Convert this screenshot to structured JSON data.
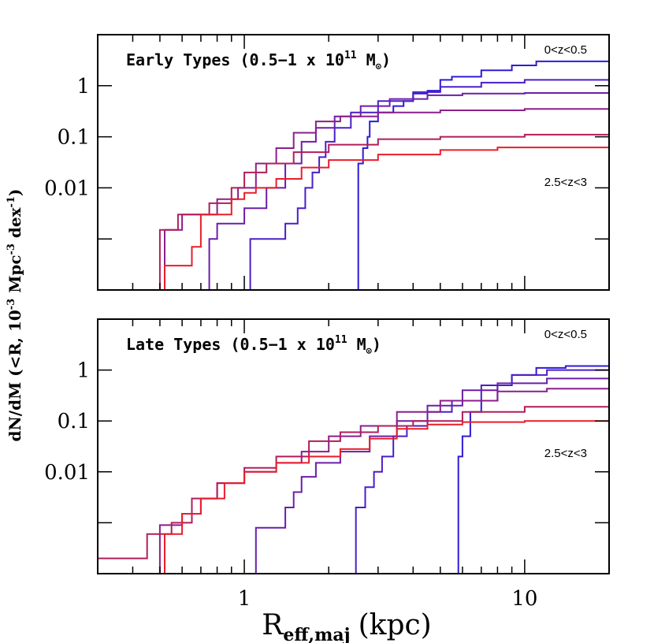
{
  "chart_data": {
    "type": "line",
    "xlabel": {
      "main": "R",
      "sub": "eff,maj",
      "unit": "(kpc)"
    },
    "ylabel": {
      "text": "dN/dM (<R, 10",
      "exp1": "-3",
      "mid": " Mpc",
      "exp2": "-3",
      "mid2": " dex",
      "exp3": "-1",
      "end": ")"
    },
    "x_scale": "log",
    "y_scale": "log",
    "xlim": [
      0.3,
      20
    ],
    "ylim": [
      0.0001,
      10
    ],
    "x_ticks": [
      {
        "value": 1,
        "label": "1"
      },
      {
        "value": 10,
        "label": "10"
      }
    ],
    "y_ticks": [
      {
        "value": 1,
        "label": "1"
      },
      {
        "value": 0.1,
        "label": "0.1"
      },
      {
        "value": 0.01,
        "label": "0.01"
      }
    ],
    "panels": [
      {
        "title": {
          "prefix": "Early Types  (0.5−1 x 10",
          "exp": "11",
          "suffix": " M",
          "sub": "⊙",
          "close": ")"
        },
        "label_top": "0<z<0.5",
        "label_bottom": "2.5<z<3",
        "series": [
          {
            "color": "#2f1bd6",
            "points": [
              [
                2.55,
                0.0001
              ],
              [
                2.55,
                0.03
              ],
              [
                2.65,
                0.06
              ],
              [
                2.75,
                0.1
              ],
              [
                2.8,
                0.2
              ],
              [
                3.0,
                0.3
              ],
              [
                3.3,
                0.3
              ],
              [
                3.4,
                0.4
              ],
              [
                3.7,
                0.5
              ],
              [
                4.0,
                0.7
              ],
              [
                4.5,
                0.8
              ],
              [
                5.0,
                1.3
              ],
              [
                5.5,
                1.5
              ],
              [
                7.0,
                2.0
              ],
              [
                9.0,
                2.5
              ],
              [
                11.0,
                3.0
              ],
              [
                20.0,
                3.0
              ]
            ]
          },
          {
            "color": "#4b1ec8",
            "points": [
              [
                1.05,
                0.0001
              ],
              [
                1.05,
                0.001
              ],
              [
                1.4,
                0.002
              ],
              [
                1.55,
                0.004
              ],
              [
                1.65,
                0.01
              ],
              [
                1.75,
                0.02
              ],
              [
                1.85,
                0.04
              ],
              [
                1.95,
                0.08
              ],
              [
                2.1,
                0.15
              ],
              [
                2.4,
                0.3
              ],
              [
                3.0,
                0.5
              ],
              [
                4.0,
                0.75
              ],
              [
                5.0,
                0.95
              ],
              [
                7.0,
                1.15
              ],
              [
                10.0,
                1.3
              ],
              [
                20.0,
                1.4
              ]
            ]
          },
          {
            "color": "#6b1ea8",
            "points": [
              [
                0.73,
                0.0001
              ],
              [
                0.75,
                0.001
              ],
              [
                0.8,
                0.002
              ],
              [
                1.0,
                0.004
              ],
              [
                1.2,
                0.01
              ],
              [
                1.4,
                0.03
              ],
              [
                1.6,
                0.08
              ],
              [
                1.8,
                0.15
              ],
              [
                2.1,
                0.25
              ],
              [
                2.6,
                0.4
              ],
              [
                3.3,
                0.55
              ],
              [
                4.5,
                0.65
              ],
              [
                6.0,
                0.7
              ],
              [
                10.0,
                0.72
              ],
              [
                20.0,
                0.75
              ]
            ]
          },
          {
            "color": "#8b1f8a",
            "points": [
              [
                0.5,
                0.0001
              ],
              [
                0.52,
                0.0015
              ],
              [
                0.6,
                0.003
              ],
              [
                0.8,
                0.006
              ],
              [
                0.95,
                0.01
              ],
              [
                1.1,
                0.03
              ],
              [
                1.3,
                0.06
              ],
              [
                1.5,
                0.12
              ],
              [
                1.8,
                0.2
              ],
              [
                2.2,
                0.25
              ],
              [
                3.0,
                0.3
              ],
              [
                5.0,
                0.33
              ],
              [
                10.0,
                0.35
              ],
              [
                20.0,
                0.36
              ]
            ]
          },
          {
            "color": "#b01e5a",
            "points": [
              [
                0.48,
                0.0001
              ],
              [
                0.5,
                0.0015
              ],
              [
                0.58,
                0.003
              ],
              [
                0.75,
                0.005
              ],
              [
                0.9,
                0.01
              ],
              [
                1.0,
                0.02
              ],
              [
                1.2,
                0.03
              ],
              [
                1.5,
                0.05
              ],
              [
                2.0,
                0.07
              ],
              [
                3.0,
                0.09
              ],
              [
                5.0,
                0.1
              ],
              [
                10.0,
                0.11
              ],
              [
                20.0,
                0.115
              ]
            ]
          },
          {
            "color": "#e81e2a",
            "points": [
              [
                0.5,
                0.0001
              ],
              [
                0.52,
                0.0003
              ],
              [
                0.6,
                0.0003
              ],
              [
                0.65,
                0.0007
              ],
              [
                0.7,
                0.003
              ],
              [
                0.8,
                0.003
              ],
              [
                0.9,
                0.006
              ],
              [
                1.0,
                0.008
              ],
              [
                1.1,
                0.01
              ],
              [
                1.3,
                0.015
              ],
              [
                1.6,
                0.025
              ],
              [
                2.0,
                0.035
              ],
              [
                3.0,
                0.045
              ],
              [
                5.0,
                0.055
              ],
              [
                8.0,
                0.062
              ],
              [
                20.0,
                0.066
              ]
            ]
          }
        ]
      },
      {
        "title": {
          "prefix": "Late Types (0.5−1 x 10",
          "exp": "11",
          "suffix": " M",
          "sub": "⊙",
          "close": ")"
        },
        "label_top": "0<z<0.5",
        "label_bottom": "2.5<z<3",
        "series": [
          {
            "color": "#2f1bd6",
            "points": [
              [
                5.8,
                0.0001
              ],
              [
                5.8,
                0.02
              ],
              [
                6.0,
                0.05
              ],
              [
                6.4,
                0.15
              ],
              [
                7.0,
                0.25
              ],
              [
                8.0,
                0.5
              ],
              [
                9.0,
                0.8
              ],
              [
                11.0,
                1.1
              ],
              [
                14.0,
                1.2
              ],
              [
                20.0,
                1.3
              ]
            ]
          },
          {
            "color": "#4b1ec8",
            "points": [
              [
                2.5,
                0.0001
              ],
              [
                2.5,
                0.002
              ],
              [
                2.7,
                0.005
              ],
              [
                2.9,
                0.01
              ],
              [
                3.1,
                0.02
              ],
              [
                3.4,
                0.05
              ],
              [
                3.8,
                0.08
              ],
              [
                4.5,
                0.15
              ],
              [
                5.5,
                0.25
              ],
              [
                7.0,
                0.5
              ],
              [
                9.0,
                0.8
              ],
              [
                12.0,
                1.0
              ],
              [
                20.0,
                1.05
              ]
            ]
          },
          {
            "color": "#6b1ea8",
            "points": [
              [
                1.1,
                0.0001
              ],
              [
                1.1,
                0.0008
              ],
              [
                1.3,
                0.0008
              ],
              [
                1.4,
                0.002
              ],
              [
                1.5,
                0.004
              ],
              [
                1.6,
                0.008
              ],
              [
                1.8,
                0.015
              ],
              [
                2.2,
                0.025
              ],
              [
                2.8,
                0.05
              ],
              [
                3.5,
                0.1
              ],
              [
                4.5,
                0.2
              ],
              [
                6.0,
                0.4
              ],
              [
                8.0,
                0.55
              ],
              [
                12.0,
                0.68
              ],
              [
                20.0,
                0.7
              ]
            ]
          },
          {
            "color": "#8b1f8a",
            "points": [
              [
                0.48,
                0.0001
              ],
              [
                0.5,
                0.0009
              ],
              [
                0.6,
                0.0015
              ],
              [
                0.7,
                0.003
              ],
              [
                0.8,
                0.006
              ],
              [
                1.0,
                0.01
              ],
              [
                1.3,
                0.015
              ],
              [
                1.6,
                0.025
              ],
              [
                2.0,
                0.05
              ],
              [
                2.6,
                0.08
              ],
              [
                3.5,
                0.15
              ],
              [
                5.0,
                0.25
              ],
              [
                8.0,
                0.38
              ],
              [
                12.0,
                0.43
              ],
              [
                20.0,
                0.45
              ]
            ]
          },
          {
            "color": "#b01e5a",
            "points": [
              [
                0.3,
                0.0002
              ],
              [
                0.4,
                0.0002
              ],
              [
                0.45,
                0.0006
              ],
              [
                0.55,
                0.001
              ],
              [
                0.65,
                0.003
              ],
              [
                0.8,
                0.006
              ],
              [
                1.0,
                0.012
              ],
              [
                1.3,
                0.02
              ],
              [
                1.7,
                0.04
              ],
              [
                2.2,
                0.06
              ],
              [
                3.0,
                0.08
              ],
              [
                4.0,
                0.1
              ],
              [
                6.0,
                0.15
              ],
              [
                10.0,
                0.19
              ],
              [
                20.0,
                0.2
              ]
            ]
          },
          {
            "color": "#e81e2a",
            "points": [
              [
                0.3,
                0.0001
              ],
              [
                0.5,
                0.0001
              ],
              [
                0.52,
                0.0006
              ],
              [
                0.6,
                0.0015
              ],
              [
                0.7,
                0.003
              ],
              [
                0.85,
                0.006
              ],
              [
                1.0,
                0.01
              ],
              [
                1.3,
                0.015
              ],
              [
                1.7,
                0.02
              ],
              [
                2.2,
                0.028
              ],
              [
                2.8,
                0.045
              ],
              [
                3.5,
                0.07
              ],
              [
                4.5,
                0.085
              ],
              [
                6.0,
                0.095
              ],
              [
                10.0,
                0.1
              ],
              [
                20.0,
                0.11
              ]
            ]
          }
        ]
      }
    ]
  }
}
